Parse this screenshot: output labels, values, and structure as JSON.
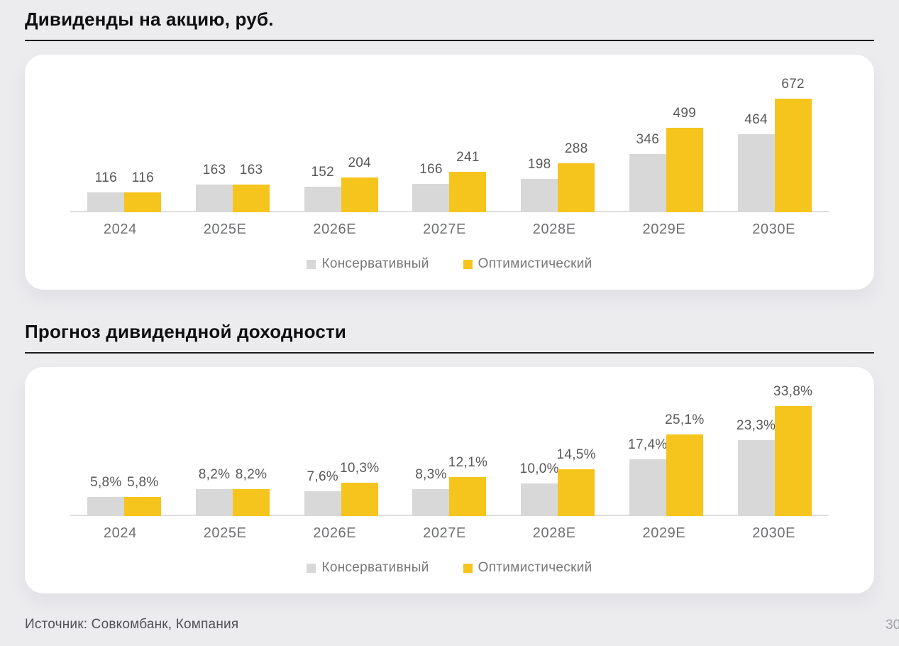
{
  "page": {
    "background": "#ECECEF",
    "card_background": "#FFFFFF",
    "footer": {
      "source": "Источник: Совкомбанк, Компания",
      "page_number": "30"
    }
  },
  "colors": {
    "conservative_series": "#D8D8D8",
    "optimistic_series": "#F5C51D",
    "title_text": "#0F0F10",
    "value_label": "#59595B",
    "axis_label": "#6E6F71",
    "legend_text": "#77787A",
    "axis_line": "#DEDEE0",
    "source_text": "#515257"
  },
  "chart_data": [
    {
      "type": "bar",
      "title": "Дивиденды на акцию, руб.",
      "categories": [
        "2024",
        "2025E",
        "2026E",
        "2027E",
        "2028E",
        "2029E",
        "2030E"
      ],
      "series": [
        {
          "name": "Консервативный",
          "color": "#D8D8D8",
          "values": [
            116,
            163,
            152,
            166,
            198,
            346,
            464
          ],
          "labels": [
            "116",
            "163",
            "152",
            "166",
            "198",
            "346",
            "464"
          ]
        },
        {
          "name": "Оптимистический",
          "color": "#F5C51D",
          "values": [
            116,
            163,
            204,
            241,
            288,
            499,
            672
          ],
          "labels": [
            "116",
            "163",
            "204",
            "241",
            "288",
            "499",
            "672"
          ]
        }
      ],
      "ylim": [
        0,
        672
      ],
      "grid": false,
      "legend_position": "bottom",
      "value_labels_shown": true
    },
    {
      "type": "bar",
      "title": "Прогноз дивидендной доходности",
      "categories": [
        "2024",
        "2025E",
        "2026E",
        "2027E",
        "2028E",
        "2029E",
        "2030E"
      ],
      "series": [
        {
          "name": "Консервативный",
          "color": "#D8D8D8",
          "values": [
            5.8,
            8.2,
            7.6,
            8.3,
            10.0,
            17.4,
            23.3
          ],
          "labels": [
            "5,8%",
            "8,2%",
            "7,6%",
            "8,3%",
            "10,0%",
            "17,4%",
            "23,3%"
          ]
        },
        {
          "name": "Оптимистический",
          "color": "#F5C51D",
          "values": [
            5.8,
            8.2,
            10.3,
            12.1,
            14.5,
            25.1,
            33.8
          ],
          "labels": [
            "5,8%",
            "8,2%",
            "10,3%",
            "12,1%",
            "14,5%",
            "25,1%",
            "33,8%"
          ]
        }
      ],
      "ylim": [
        0,
        33.8
      ],
      "grid": false,
      "legend_position": "bottom",
      "value_labels_shown": true
    }
  ]
}
